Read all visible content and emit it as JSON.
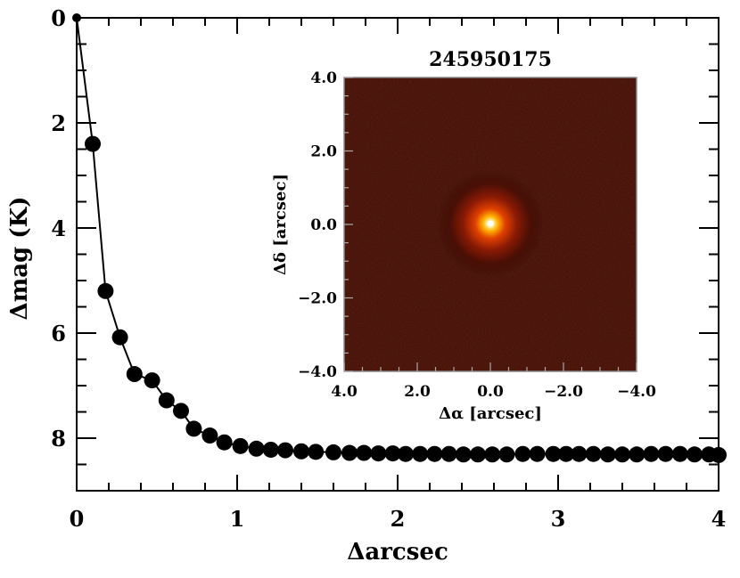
{
  "chart_data": [
    {
      "type": "line",
      "xlabel": "Δarcsec",
      "ylabel": "Δmag (K)",
      "xlim": [
        0,
        4
      ],
      "ylim": [
        9,
        0
      ],
      "x_ticks": [
        "0",
        "1",
        "2",
        "3",
        "4"
      ],
      "y_ticks": [
        "0",
        "2",
        "4",
        "6",
        "8"
      ],
      "x_tick_values": [
        0,
        1,
        2,
        3,
        4
      ],
      "y_tick_values": [
        0,
        2,
        4,
        6,
        8
      ],
      "marker": "circle",
      "color": "#000000",
      "series": [
        {
          "values_x": [
            0.0,
            0.1,
            0.18,
            0.27,
            0.36,
            0.47,
            0.56,
            0.65,
            0.73,
            0.83,
            0.92,
            1.02,
            1.12,
            1.21,
            1.3,
            1.4,
            1.49,
            1.6,
            1.7,
            1.79,
            1.88,
            1.97,
            2.05,
            2.14,
            2.23,
            2.32,
            2.41,
            2.5,
            2.59,
            2.68,
            2.78,
            2.87,
            2.97,
            3.05,
            3.13,
            3.22,
            3.31,
            3.4,
            3.49,
            3.58,
            3.67,
            3.76,
            3.85,
            3.94,
            4.0
          ],
          "values_y": [
            0.0,
            2.4,
            5.2,
            6.08,
            6.78,
            6.9,
            7.28,
            7.48,
            7.82,
            7.95,
            8.08,
            8.15,
            8.2,
            8.22,
            8.23,
            8.25,
            8.26,
            8.27,
            8.28,
            8.28,
            8.29,
            8.29,
            8.3,
            8.3,
            8.3,
            8.3,
            8.31,
            8.31,
            8.31,
            8.31,
            8.3,
            8.3,
            8.3,
            8.3,
            8.3,
            8.3,
            8.31,
            8.31,
            8.31,
            8.3,
            8.3,
            8.3,
            8.31,
            8.31,
            8.32
          ]
        }
      ]
    },
    {
      "type": "heatmap",
      "title": "245950175",
      "xlabel": "Δα [arcsec]",
      "ylabel": "Δδ [arcsec]",
      "xlim": [
        4.0,
        -4.0
      ],
      "ylim": [
        -4.0,
        4.0
      ],
      "x_ticks": [
        "4.0",
        "2.0",
        "0.0",
        "−2.0",
        "−4.0"
      ],
      "y_ticks": [
        "−4.0",
        "−2.0",
        "0.0",
        "2.0",
        "4.0"
      ],
      "x_tick_values": [
        4,
        2,
        0,
        -2,
        -4
      ],
      "y_tick_values": [
        -4,
        -2,
        0,
        2,
        4
      ],
      "colormap": "red-temperature",
      "background_color": "#3a0a04",
      "peak_color": "#ffffff",
      "source_center": [
        0.0,
        0.0
      ]
    }
  ]
}
